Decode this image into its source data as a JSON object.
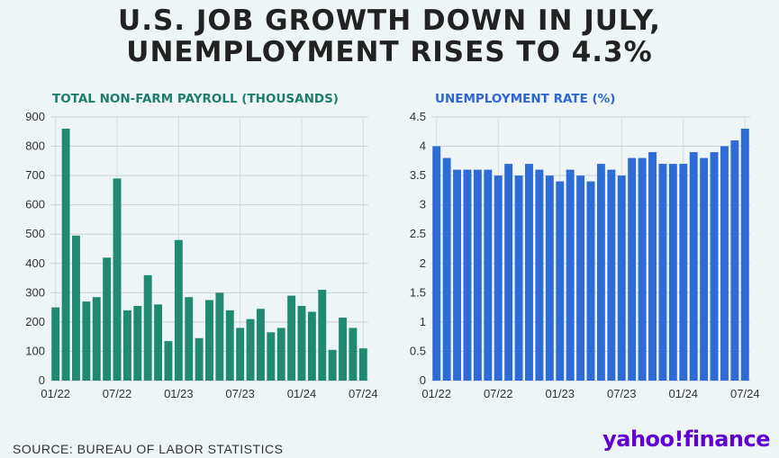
{
  "title": {
    "line1": "U.S. JOB GROWTH DOWN IN JULY,",
    "line2": "UNEMPLOYMENT RISES TO 4.3%"
  },
  "source": "SOURCE: BUREAU OF LABOR STATISTICS",
  "logo": "yahoo!finance",
  "colors": {
    "payroll": "#1f8a70",
    "unemployment": "#2f6bd6"
  },
  "chart_data": [
    {
      "type": "bar",
      "title": "TOTAL NON-FARM PAYROLL (THOUSANDS)",
      "x_tick_labels": [
        "01/22",
        "07/22",
        "01/23",
        "07/23",
        "01/24",
        "07/24"
      ],
      "y_ticks": [
        0,
        100,
        200,
        300,
        400,
        500,
        600,
        700,
        800,
        900
      ],
      "ylim": [
        0,
        900
      ],
      "grid": true,
      "categories": [
        "01/22",
        "02/22",
        "03/22",
        "04/22",
        "05/22",
        "06/22",
        "07/22",
        "08/22",
        "09/22",
        "10/22",
        "11/22",
        "12/22",
        "01/23",
        "02/23",
        "03/23",
        "04/23",
        "05/23",
        "06/23",
        "07/23",
        "08/23",
        "09/23",
        "10/23",
        "11/23",
        "12/23",
        "01/24",
        "02/24",
        "03/24",
        "04/24",
        "05/24",
        "06/24",
        "07/24"
      ],
      "values": [
        250,
        860,
        495,
        270,
        285,
        420,
        690,
        240,
        255,
        360,
        260,
        135,
        480,
        285,
        145,
        275,
        300,
        240,
        180,
        210,
        245,
        165,
        180,
        290,
        255,
        235,
        310,
        105,
        215,
        180,
        110
      ]
    },
    {
      "type": "bar",
      "title": "UNEMPLOYMENT RATE (%)",
      "x_tick_labels": [
        "01/22",
        "07/22",
        "01/23",
        "07/23",
        "01/24",
        "07/24"
      ],
      "y_ticks": [
        0,
        0.5,
        1,
        1.5,
        2,
        2.5,
        3,
        3.5,
        4,
        4.5
      ],
      "ylim": [
        0,
        4.5
      ],
      "grid": true,
      "categories": [
        "01/22",
        "02/22",
        "03/22",
        "04/22",
        "05/22",
        "06/22",
        "07/22",
        "08/22",
        "09/22",
        "10/22",
        "11/22",
        "12/22",
        "01/23",
        "02/23",
        "03/23",
        "04/23",
        "05/23",
        "06/23",
        "07/23",
        "08/23",
        "09/23",
        "10/23",
        "11/23",
        "12/23",
        "01/24",
        "02/24",
        "03/24",
        "04/24",
        "05/24",
        "06/24",
        "07/24"
      ],
      "values": [
        4.0,
        3.8,
        3.6,
        3.6,
        3.6,
        3.6,
        3.5,
        3.7,
        3.5,
        3.7,
        3.6,
        3.5,
        3.4,
        3.6,
        3.5,
        3.4,
        3.7,
        3.6,
        3.5,
        3.8,
        3.8,
        3.9,
        3.7,
        3.7,
        3.7,
        3.9,
        3.8,
        3.9,
        4.0,
        4.1,
        4.3
      ]
    }
  ]
}
